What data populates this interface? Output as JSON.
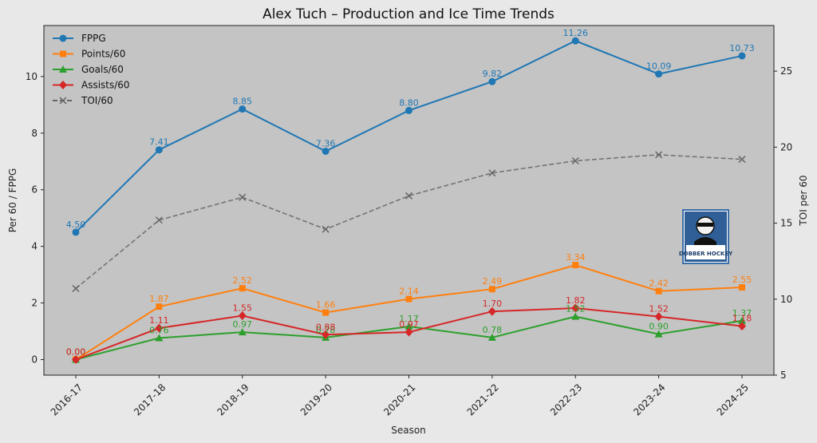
{
  "chart_data": {
    "type": "line",
    "title": "Alex Tuch – Production and Ice Time Trends",
    "xlabel": "Season",
    "ylabel": "Per 60 / FPPG",
    "y2label": "TOI per 60",
    "categories": [
      "2016-17",
      "2017-18",
      "2018-19",
      "2019-20",
      "2020-21",
      "2021-22",
      "2022-23",
      "2023-24",
      "2024-25"
    ],
    "ylim": [
      -0.55,
      11.8
    ],
    "y2lim": [
      5,
      28
    ],
    "yticks": [
      "0",
      "2",
      "4",
      "6",
      "8",
      "10"
    ],
    "y2ticks": [
      "5",
      "10",
      "15",
      "20",
      "25"
    ],
    "legend_position": "top-left",
    "grid": false,
    "series": [
      {
        "name": "FPPG",
        "axis": "left",
        "color": "#1f77b4",
        "marker": "circle",
        "style": "solid",
        "values": [
          4.5,
          7.41,
          8.85,
          7.36,
          8.8,
          9.82,
          11.26,
          10.09,
          10.73
        ],
        "labels": [
          "4.50",
          "7.41",
          "8.85",
          "7.36",
          "8.80",
          "9.82",
          "11.26",
          "10.09",
          "10.73"
        ]
      },
      {
        "name": "Points/60",
        "axis": "left",
        "color": "#ff7f0e",
        "marker": "square",
        "style": "solid",
        "values": [
          0.0,
          1.87,
          2.52,
          1.66,
          2.14,
          2.49,
          3.34,
          2.42,
          2.55
        ],
        "labels": [
          "0.00",
          "1.87",
          "2.52",
          "1.66",
          "2.14",
          "2.49",
          "3.34",
          "2.42",
          "2.55"
        ]
      },
      {
        "name": "Goals/60",
        "axis": "left",
        "color": "#2ca02c",
        "marker": "triangle",
        "style": "solid",
        "values": [
          0.0,
          0.76,
          0.97,
          0.78,
          1.17,
          0.78,
          1.52,
          0.9,
          1.37
        ],
        "labels": [
          "0.00",
          "0.76",
          "0.97",
          "0.78",
          "1.17",
          "0.78",
          "1.52",
          "0.90",
          "1.37"
        ]
      },
      {
        "name": "Assists/60",
        "axis": "left",
        "color": "#d62728",
        "marker": "diamond",
        "style": "solid",
        "values": [
          0.0,
          1.11,
          1.55,
          0.88,
          0.97,
          1.7,
          1.82,
          1.52,
          1.18
        ],
        "labels": [
          "0.00",
          "1.11",
          "1.55",
          "0.88",
          "0.97",
          "1.70",
          "1.82",
          "1.52",
          "1.18"
        ]
      },
      {
        "name": "TOI/60",
        "axis": "right",
        "color": "#666666",
        "marker": "x",
        "style": "dashed",
        "values": [
          10.7,
          15.2,
          16.7,
          14.6,
          16.8,
          18.3,
          19.1,
          19.5,
          19.2
        ],
        "labels": []
      }
    ]
  },
  "watermark": {
    "text": "DOBBER HOCKEY"
  }
}
